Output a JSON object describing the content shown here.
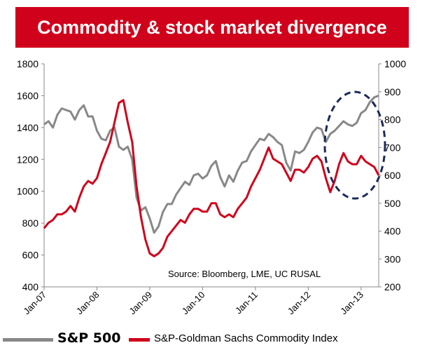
{
  "title": "Commodity & stock market divergence",
  "source_note": "Source: Bloomberg, LME, UC RUSAL",
  "colors": {
    "title_bg": "#d0021b",
    "sp500": "#888888",
    "commodity": "#d0021b",
    "annotation": "#1a2a5a"
  },
  "chart_data": {
    "type": "line",
    "title": "Commodity & stock market divergence",
    "x_tick_labels": [
      "Jan-07",
      "Jan-08",
      "Jan-09",
      "Jan-10",
      "Jan-11",
      "Jan-12",
      "Jan-13"
    ],
    "xlim": [
      "2007-01",
      "2013-05"
    ],
    "y_left": {
      "ticks": [
        400,
        600,
        800,
        1000,
        1200,
        1400,
        1600,
        1800
      ],
      "ylim": [
        400,
        1800
      ]
    },
    "y_right": {
      "ticks": [
        200,
        300,
        400,
        500,
        600,
        700,
        800,
        900,
        1000
      ],
      "ylim": [
        200,
        1000
      ]
    },
    "grid": false,
    "legend_position": "bottom",
    "annotation": "dashed ellipse highlighting divergence late-2012 to 2013",
    "series": [
      {
        "name": "S&P 500",
        "axis": "left",
        "x": [
          "2007-01",
          "2007-02",
          "2007-03",
          "2007-04",
          "2007-05",
          "2007-06",
          "2007-07",
          "2007-08",
          "2007-09",
          "2007-10",
          "2007-11",
          "2007-12",
          "2008-01",
          "2008-02",
          "2008-03",
          "2008-04",
          "2008-05",
          "2008-06",
          "2008-07",
          "2008-08",
          "2008-09",
          "2008-10",
          "2008-11",
          "2008-12",
          "2009-01",
          "2009-02",
          "2009-03",
          "2009-04",
          "2009-05",
          "2009-06",
          "2009-07",
          "2009-08",
          "2009-09",
          "2009-10",
          "2009-11",
          "2009-12",
          "2010-01",
          "2010-02",
          "2010-03",
          "2010-04",
          "2010-05",
          "2010-06",
          "2010-07",
          "2010-08",
          "2010-09",
          "2010-10",
          "2010-11",
          "2010-12",
          "2011-01",
          "2011-02",
          "2011-03",
          "2011-04",
          "2011-05",
          "2011-06",
          "2011-07",
          "2011-08",
          "2011-09",
          "2011-10",
          "2011-11",
          "2011-12",
          "2012-01",
          "2012-02",
          "2012-03",
          "2012-04",
          "2012-05",
          "2012-06",
          "2012-07",
          "2012-08",
          "2012-09",
          "2012-10",
          "2012-11",
          "2012-12",
          "2013-01",
          "2013-02",
          "2013-03",
          "2013-04",
          "2013-05"
        ],
        "values": [
          1420,
          1440,
          1400,
          1480,
          1520,
          1510,
          1500,
          1450,
          1510,
          1540,
          1470,
          1470,
          1380,
          1330,
          1320,
          1380,
          1400,
          1280,
          1260,
          1280,
          1200,
          960,
          880,
          900,
          830,
          740,
          780,
          870,
          920,
          920,
          980,
          1020,
          1060,
          1040,
          1100,
          1110,
          1080,
          1100,
          1160,
          1190,
          1090,
          1030,
          1100,
          1060,
          1130,
          1180,
          1190,
          1250,
          1290,
          1330,
          1320,
          1360,
          1340,
          1310,
          1290,
          1180,
          1130,
          1250,
          1240,
          1260,
          1310,
          1370,
          1400,
          1390,
          1310,
          1360,
          1380,
          1410,
          1440,
          1420,
          1410,
          1430,
          1490,
          1510,
          1560,
          1590,
          1600
        ]
      },
      {
        "name": "S&P-Goldman Sachs Commodity Index",
        "axis": "right",
        "x": [
          "2007-01",
          "2007-02",
          "2007-03",
          "2007-04",
          "2007-05",
          "2007-06",
          "2007-07",
          "2007-08",
          "2007-09",
          "2007-10",
          "2007-11",
          "2007-12",
          "2008-01",
          "2008-02",
          "2008-03",
          "2008-04",
          "2008-05",
          "2008-06",
          "2008-07",
          "2008-08",
          "2008-09",
          "2008-10",
          "2008-11",
          "2008-12",
          "2009-01",
          "2009-02",
          "2009-03",
          "2009-04",
          "2009-05",
          "2009-06",
          "2009-07",
          "2009-08",
          "2009-09",
          "2009-10",
          "2009-11",
          "2009-12",
          "2010-01",
          "2010-02",
          "2010-03",
          "2010-04",
          "2010-05",
          "2010-06",
          "2010-07",
          "2010-08",
          "2010-09",
          "2010-10",
          "2010-11",
          "2010-12",
          "2011-01",
          "2011-02",
          "2011-03",
          "2011-04",
          "2011-05",
          "2011-06",
          "2011-07",
          "2011-08",
          "2011-09",
          "2011-10",
          "2011-11",
          "2011-12",
          "2012-01",
          "2012-02",
          "2012-03",
          "2012-04",
          "2012-05",
          "2012-06",
          "2012-07",
          "2012-08",
          "2012-09",
          "2012-10",
          "2012-11",
          "2012-12",
          "2013-01",
          "2013-02",
          "2013-03",
          "2013-04",
          "2013-05"
        ],
        "values": [
          410,
          430,
          440,
          460,
          460,
          470,
          490,
          470,
          520,
          560,
          580,
          570,
          590,
          640,
          680,
          720,
          790,
          860,
          870,
          790,
          720,
          560,
          450,
          370,
          320,
          310,
          320,
          340,
          380,
          400,
          420,
          440,
          430,
          460,
          480,
          480,
          470,
          470,
          500,
          500,
          460,
          450,
          460,
          450,
          480,
          500,
          520,
          560,
          590,
          620,
          660,
          700,
          660,
          650,
          640,
          610,
          580,
          620,
          620,
          610,
          630,
          660,
          670,
          650,
          590,
          540,
          580,
          640,
          680,
          650,
          640,
          640,
          670,
          650,
          640,
          630,
          600
        ]
      }
    ]
  },
  "legend": {
    "sp500": "S&P 500",
    "commodity": "S&P-Goldman Sachs Commodity Index"
  }
}
